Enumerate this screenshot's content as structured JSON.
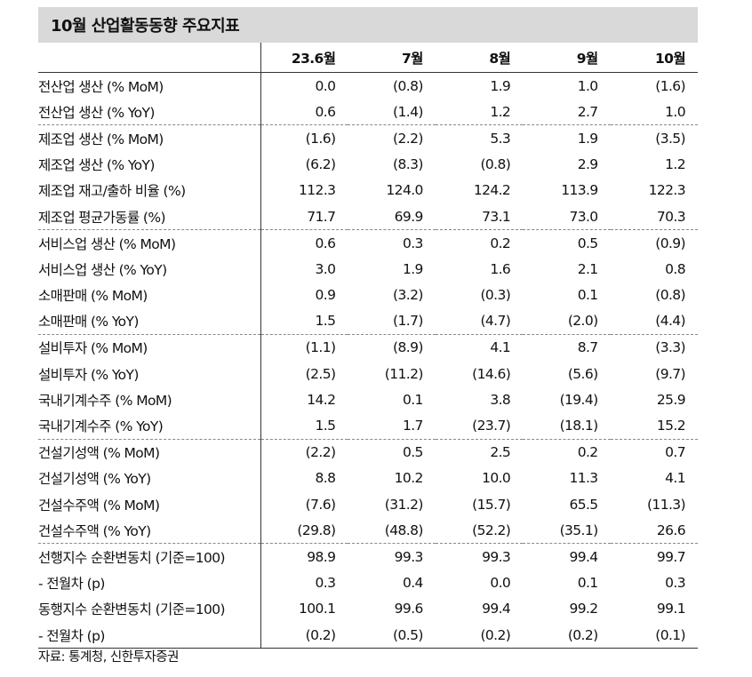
{
  "title": "10월 산업활동동향 주요지표",
  "columns": [
    "23.6월",
    "7월",
    "8월",
    "9월",
    "10월"
  ],
  "groups": [
    [
      {
        "label": "전산업 생산 (% MoM)",
        "values": [
          "0.0",
          "(0.8)",
          "1.9",
          "1.0",
          "(1.6)"
        ]
      },
      {
        "label": "전산업 생산 (% YoY)",
        "values": [
          "0.6",
          "(1.4)",
          "1.2",
          "2.7",
          "1.0"
        ]
      }
    ],
    [
      {
        "label": "제조업 생산 (% MoM)",
        "values": [
          "(1.6)",
          "(2.2)",
          "5.3",
          "1.9",
          "(3.5)"
        ]
      },
      {
        "label": "제조업 생산 (% YoY)",
        "values": [
          "(6.2)",
          "(8.3)",
          "(0.8)",
          "2.9",
          "1.2"
        ]
      },
      {
        "label": "제조업 재고/출하 비율 (%)",
        "values": [
          "112.3",
          "124.0",
          "124.2",
          "113.9",
          "122.3"
        ]
      },
      {
        "label": "제조업 평균가동률 (%)",
        "values": [
          "71.7",
          "69.9",
          "73.1",
          "73.0",
          "70.3"
        ]
      }
    ],
    [
      {
        "label": "서비스업 생산 (% MoM)",
        "values": [
          "0.6",
          "0.3",
          "0.2",
          "0.5",
          "(0.9)"
        ]
      },
      {
        "label": "서비스업 생산 (% YoY)",
        "values": [
          "3.0",
          "1.9",
          "1.6",
          "2.1",
          "0.8"
        ]
      },
      {
        "label": "소매판매 (% MoM)",
        "values": [
          "0.9",
          "(3.2)",
          "(0.3)",
          "0.1",
          "(0.8)"
        ]
      },
      {
        "label": "소매판매 (% YoY)",
        "values": [
          "1.5",
          "(1.7)",
          "(4.7)",
          "(2.0)",
          "(4.4)"
        ]
      }
    ],
    [
      {
        "label": "설비투자 (% MoM)",
        "values": [
          "(1.1)",
          "(8.9)",
          "4.1",
          "8.7",
          "(3.3)"
        ]
      },
      {
        "label": "설비투자 (% YoY)",
        "values": [
          "(2.5)",
          "(11.2)",
          "(14.6)",
          "(5.6)",
          "(9.7)"
        ]
      },
      {
        "label": "국내기계수주 (% MoM)",
        "values": [
          "14.2",
          "0.1",
          "3.8",
          "(19.4)",
          "25.9"
        ]
      },
      {
        "label": "국내기계수주 (% YoY)",
        "values": [
          "1.5",
          "1.7",
          "(23.7)",
          "(18.1)",
          "15.2"
        ]
      }
    ],
    [
      {
        "label": "건설기성액 (% MoM)",
        "values": [
          "(2.2)",
          "0.5",
          "2.5",
          "0.2",
          "0.7"
        ]
      },
      {
        "label": "건설기성액 (% YoY)",
        "values": [
          "8.8",
          "10.2",
          "10.0",
          "11.3",
          "4.1"
        ]
      },
      {
        "label": "건설수주액 (% MoM)",
        "values": [
          "(7.6)",
          "(31.2)",
          "(15.7)",
          "65.5",
          "(11.3)"
        ]
      },
      {
        "label": "건설수주액 (% YoY)",
        "values": [
          "(29.8)",
          "(48.8)",
          "(52.2)",
          "(35.1)",
          "26.6"
        ]
      }
    ],
    [
      {
        "label": "선행지수 순환변동치 (기준=100)",
        "values": [
          "98.9",
          "99.3",
          "99.3",
          "99.4",
          "99.7"
        ]
      },
      {
        "label": "- 전월차 (p)",
        "values": [
          "0.3",
          "0.4",
          "0.0",
          "0.1",
          "0.3"
        ]
      },
      {
        "label": "동행지수 순환변동치 (기준=100)",
        "values": [
          "100.1",
          "99.6",
          "99.4",
          "99.2",
          "99.1"
        ]
      },
      {
        "label": "- 전월차 (p)",
        "values": [
          "(0.2)",
          "(0.5)",
          "(0.2)",
          "(0.2)",
          "(0.1)"
        ]
      }
    ]
  ],
  "source": "자료: 통계청, 신한투자증권"
}
